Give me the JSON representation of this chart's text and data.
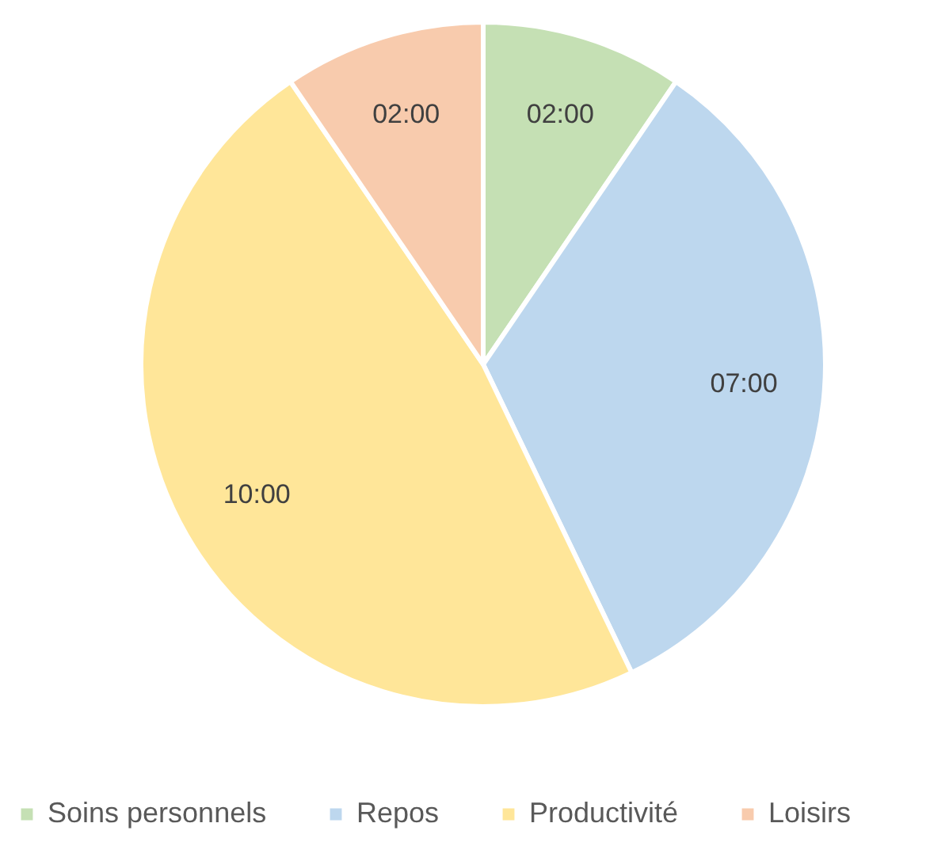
{
  "chart_data": {
    "type": "pie",
    "categories": [
      "Soins personnels",
      "Repos",
      "Productivité",
      "Loisirs"
    ],
    "values": [
      2,
      7,
      10,
      2
    ],
    "value_labels": [
      "02:00",
      "07:00",
      "10:00",
      "02:00"
    ],
    "colors": [
      "#c5e0b4",
      "#bdd7ee",
      "#ffe699",
      "#f8cbad"
    ],
    "legend": "bottom"
  }
}
